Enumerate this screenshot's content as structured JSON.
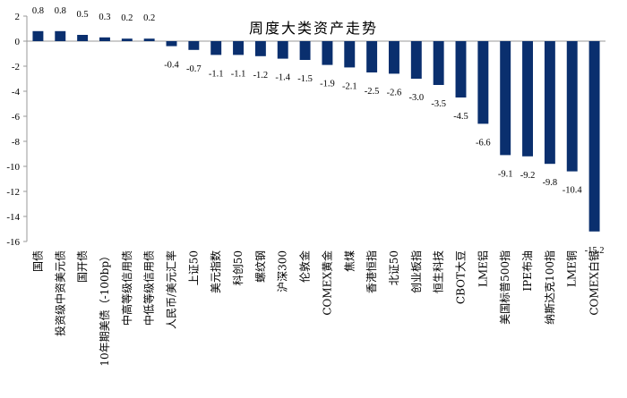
{
  "chart_data": {
    "type": "bar",
    "title": "周度大类资产走势",
    "categories": [
      "国债",
      "投资级中资美元债",
      "国开债",
      "10年期美债（-100bp）",
      "中高等级信用债",
      "中低等级信用债",
      "人民币/美元汇率",
      "上证50",
      "美元指数",
      "科创50",
      "螺纹钢",
      "沪深300",
      "伦敦金",
      "COMEX黄金",
      "焦煤",
      "香港恒指",
      "北证50",
      "创业板指",
      "恒生科技",
      "CBOT大豆",
      "LME铝",
      "美国标普500指",
      "IPE布油",
      "纳斯达克100指",
      "LME铜",
      "COMEX白银"
    ],
    "values": [
      0.8,
      0.8,
      0.5,
      0.3,
      0.2,
      0.2,
      -0.4,
      -0.7,
      -1.1,
      -1.1,
      -1.2,
      -1.4,
      -1.5,
      -1.9,
      -2.1,
      -2.5,
      -2.6,
      -3.0,
      -3.5,
      -4.5,
      -6.6,
      -9.1,
      -9.2,
      -9.8,
      -10.4,
      -15.2
    ],
    "value_labels": [
      "0.8",
      "0.8",
      "0.5",
      "0.3",
      "0.2",
      "0.2",
      "-0.4",
      "-0.7",
      "-1.1",
      "-1.1",
      "-1.2",
      "-1.4",
      "-1.5",
      "-1.9",
      "-2.1",
      "-2.5",
      "-2.6",
      "-3.0",
      "-3.5",
      "-4.5",
      "-6.6",
      "-9.1",
      "-9.2",
      "-9.8",
      "-10.4",
      "-15.2"
    ],
    "ylim": [
      -16,
      2
    ],
    "yticks": [
      2,
      0,
      -2,
      -4,
      -6,
      -8,
      -10,
      -12,
      -14,
      -16
    ],
    "ytick_labels": [
      "2",
      "0",
      "-2",
      "-4",
      "-6",
      "-8",
      "-10",
      "-12",
      "-14",
      "-16"
    ],
    "xlabel": "",
    "ylabel": "",
    "grid": false,
    "legend": "none",
    "colors": {
      "bar": "#0a2f6e",
      "axis": "#999999",
      "text": "#000000"
    }
  }
}
